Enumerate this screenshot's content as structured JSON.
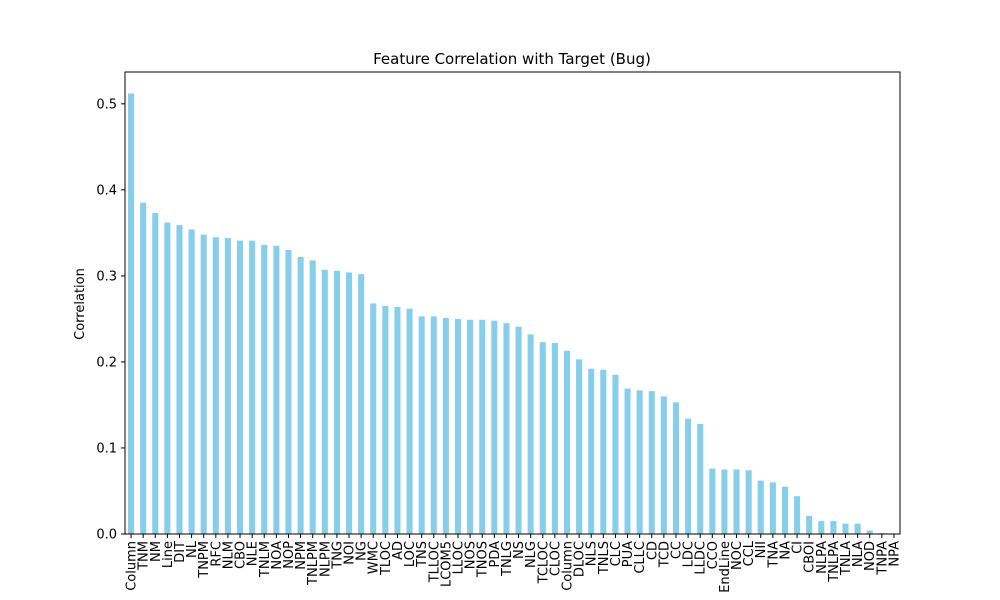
{
  "chart_data": {
    "type": "bar",
    "title": "Feature Correlation with Target (Bug)",
    "xlabel": "",
    "ylabel": "Correlation",
    "ylim": [
      0,
      0.537
    ],
    "yticks": [
      "0.0",
      "0.1",
      "0.2",
      "0.3",
      "0.4",
      "0.5"
    ],
    "grid": false,
    "bar_color": "#87ceeb",
    "categories": [
      "Column",
      "TNM",
      "NM",
      "Line",
      "DIT",
      "NL",
      "TNPM",
      "RFC",
      "NLM",
      "CBO",
      "NLE",
      "TNLM",
      "NOA",
      "NOP",
      "NPM",
      "TNLPM",
      "NLPM",
      "TNG",
      "NOI",
      "NG",
      "WMC",
      "TLOC",
      "AD",
      "LOC",
      "TNS",
      "TLLOC",
      "LCOM5",
      "LLOC",
      "NOS",
      "TNOS",
      "PDA",
      "TNLG",
      "NS",
      "NLG",
      "TCLOC",
      "CLOC",
      "Column",
      "DLOC",
      "NLS",
      "TNLS",
      "CLC",
      "PUA",
      "CLLC",
      "CD",
      "TCD",
      "CC",
      "LDC",
      "LLDC",
      "CCO",
      "EndLine",
      "NOC",
      "CCL",
      "NII",
      "TNA",
      "NA",
      "CI",
      "CBOI",
      "NLPA",
      "TNLPA",
      "TNLA",
      "NLA",
      "NOD",
      "TNPA",
      "NPA"
    ],
    "values": [
      0.512,
      0.385,
      0.373,
      0.362,
      0.359,
      0.354,
      0.348,
      0.345,
      0.344,
      0.341,
      0.341,
      0.336,
      0.335,
      0.33,
      0.322,
      0.318,
      0.307,
      0.306,
      0.304,
      0.302,
      0.268,
      0.265,
      0.264,
      0.262,
      0.253,
      0.253,
      0.251,
      0.25,
      0.249,
      0.249,
      0.248,
      0.245,
      0.241,
      0.232,
      0.223,
      0.222,
      0.213,
      0.203,
      0.192,
      0.191,
      0.185,
      0.169,
      0.167,
      0.166,
      0.16,
      0.153,
      0.134,
      0.128,
      0.076,
      0.075,
      0.075,
      0.074,
      0.062,
      0.06,
      0.055,
      0.044,
      0.021,
      0.015,
      0.015,
      0.012,
      0.012,
      0.004,
      0.001,
      0.0
    ]
  }
}
